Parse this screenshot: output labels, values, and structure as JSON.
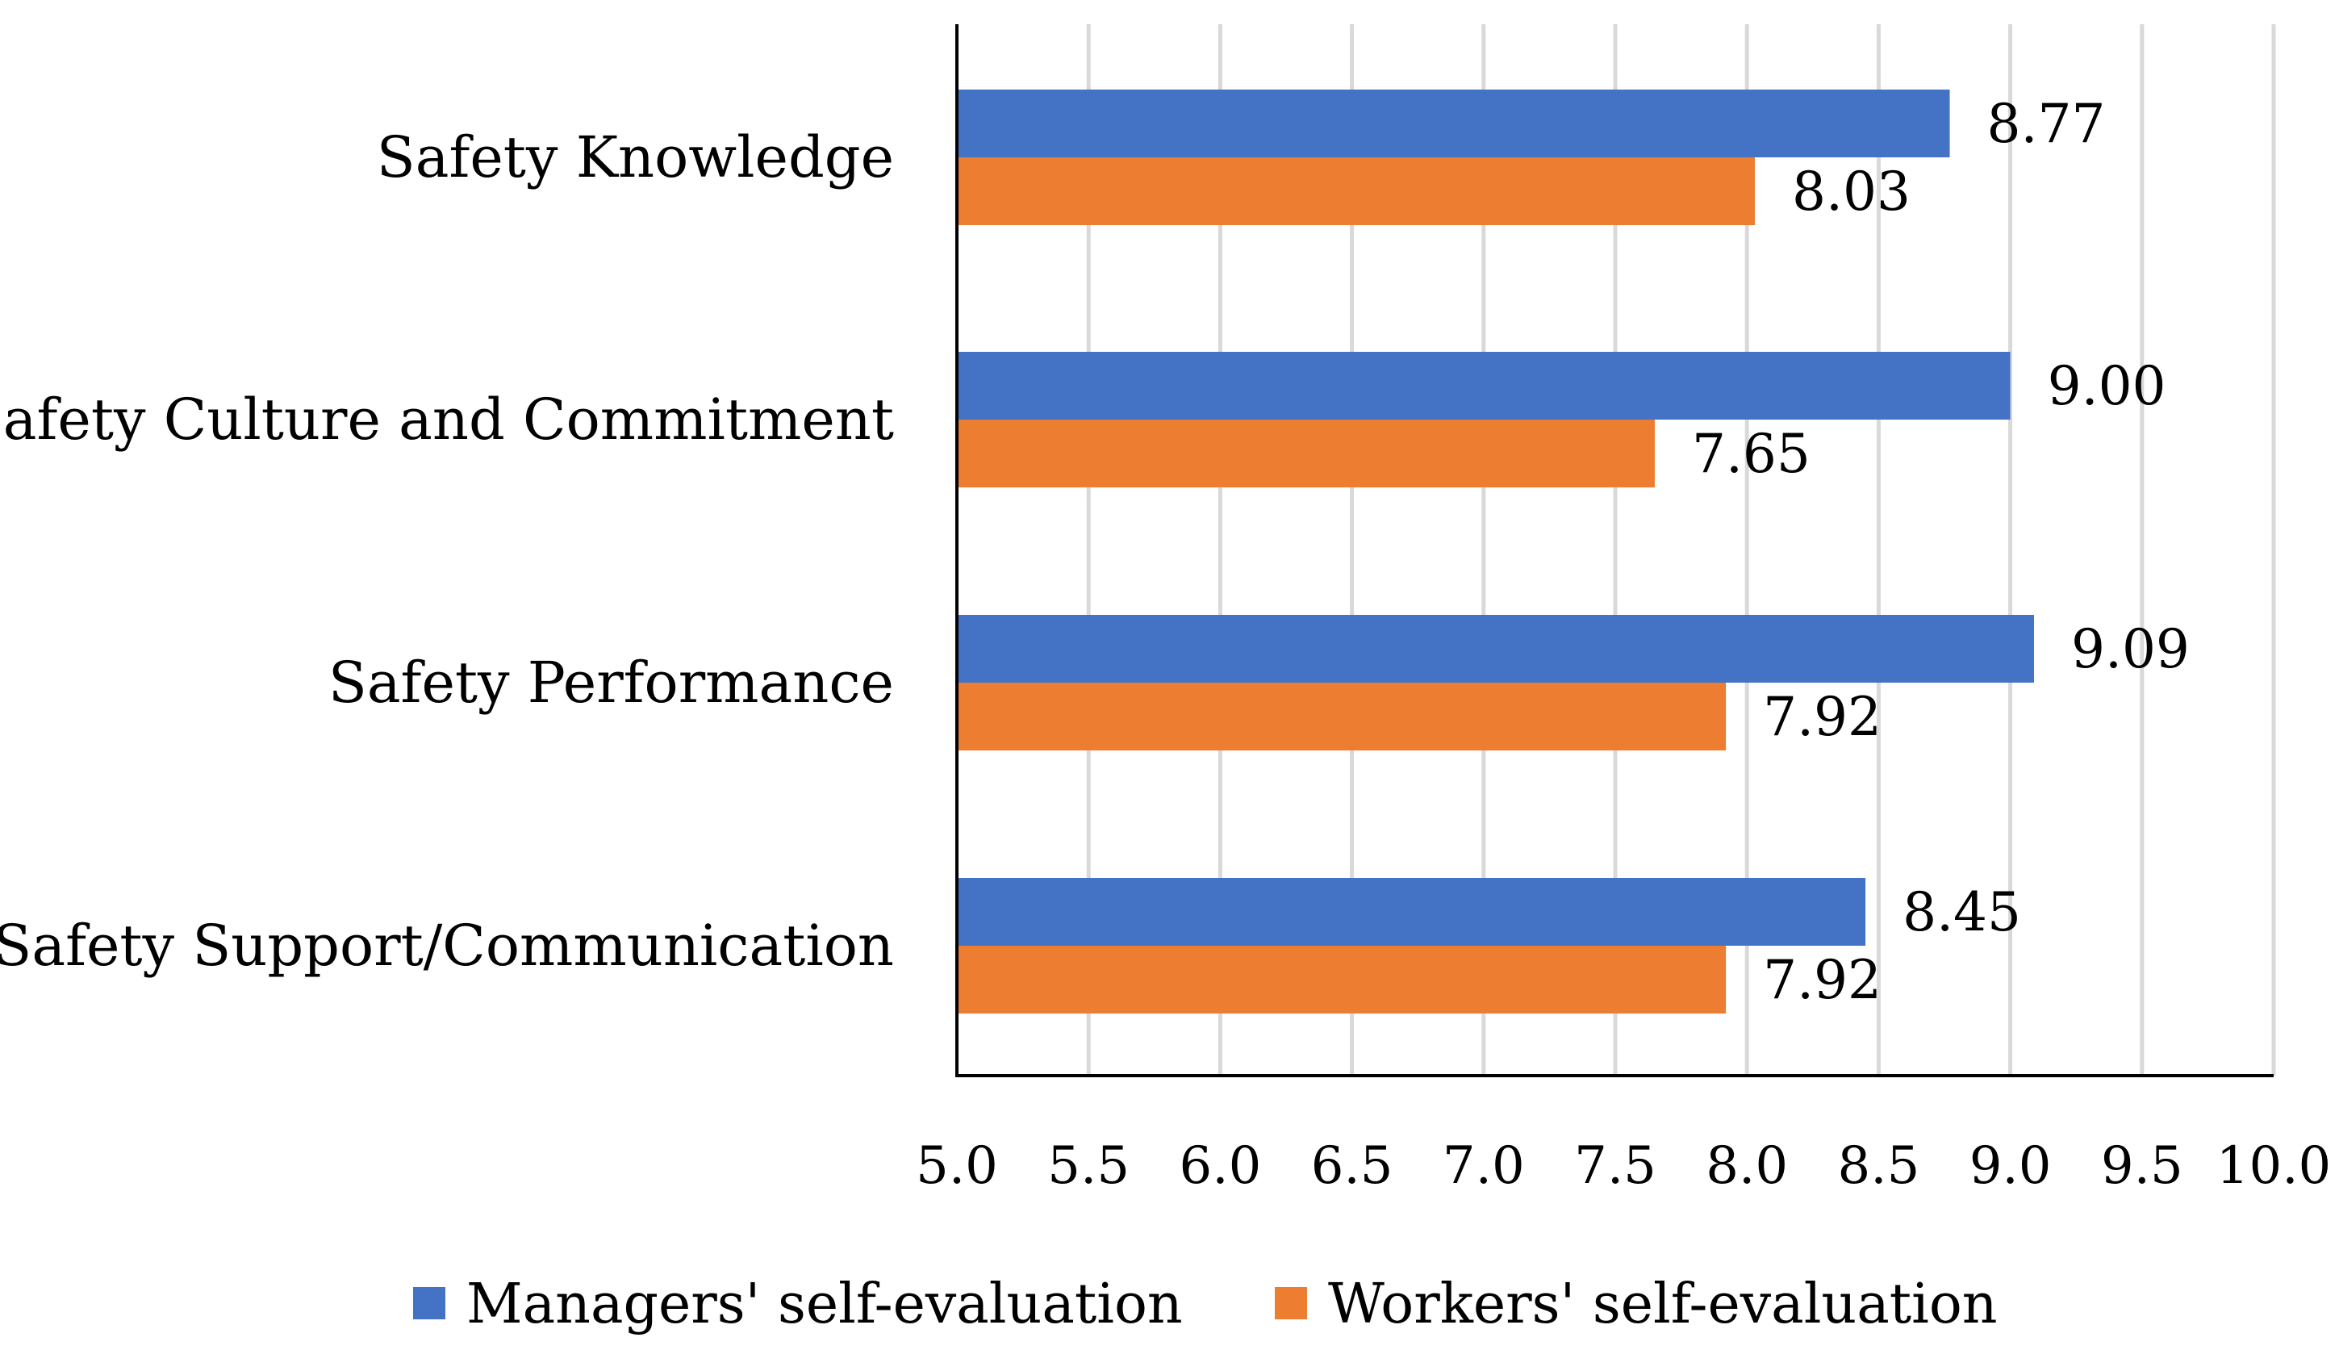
{
  "chart_data": {
    "type": "bar",
    "orientation": "horizontal",
    "title": "",
    "xlabel": "",
    "ylabel": "",
    "categories": [
      "Safety Knowledge",
      "Safety Culture and Commitment",
      "Safety Performance",
      "Safety Support/Communication"
    ],
    "series": [
      {
        "name": "Managers' self-evaluation",
        "color": "#4472C4",
        "values": [
          8.77,
          9.0,
          9.09,
          8.45
        ],
        "labels": [
          "8.77",
          "9.00",
          "9.09",
          "8.45"
        ]
      },
      {
        "name": "Workers' self-evaluation",
        "color": "#ED7D31",
        "values": [
          8.03,
          7.65,
          7.92,
          7.92
        ],
        "labels": [
          "8.03",
          "7.65",
          "7.92",
          "7.92"
        ]
      }
    ],
    "xlim": [
      5.0,
      10.0
    ],
    "ticks": [
      5.0,
      5.5,
      6.0,
      6.5,
      7.0,
      7.5,
      8.0,
      8.5,
      9.0,
      9.5,
      10.0
    ],
    "tick_labels": [
      "5.0",
      "5.5",
      "6.0",
      "6.5",
      "7.0",
      "7.5",
      "8.0",
      "8.5",
      "9.0",
      "9.5",
      "10.0"
    ],
    "grid": true,
    "grid_color": "#D9D9D9",
    "legend_position": "bottom"
  }
}
